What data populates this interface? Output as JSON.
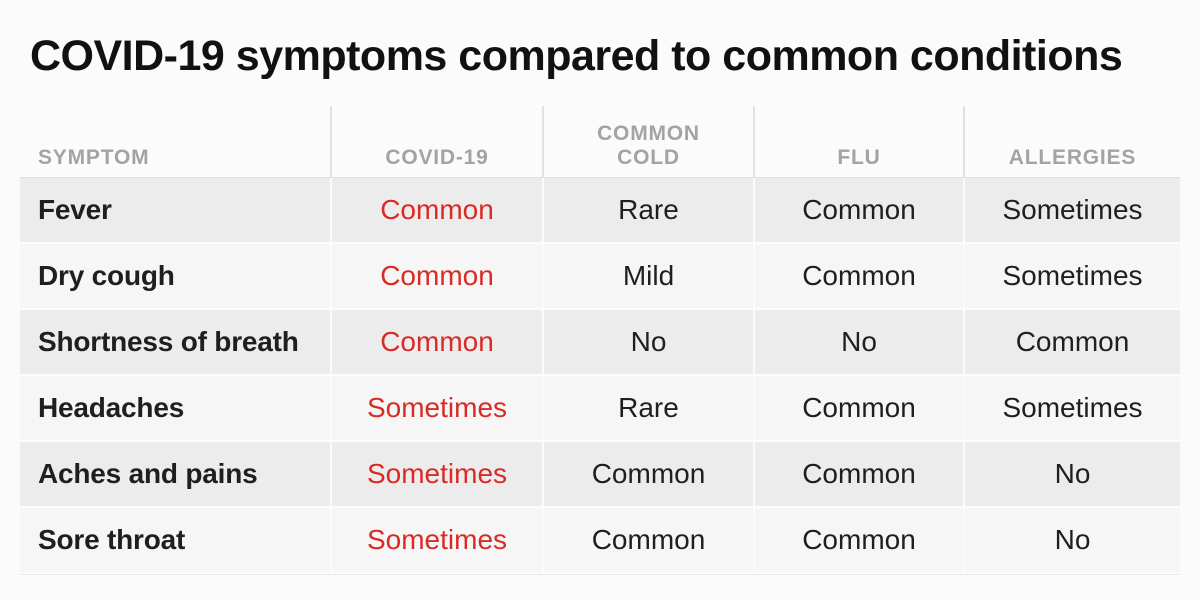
{
  "title": "COVID-19 symptoms compared to common conditions",
  "colors": {
    "accent_red": "#d92b26",
    "header_text": "#a3a3a3",
    "body_text": "#1f1f1f",
    "row_shaded": "#ececec",
    "row_light": "#f6f6f6",
    "page_background": "#fbfbfb"
  },
  "table": {
    "headers": [
      {
        "key": "symptom",
        "label": "SYMPTOM"
      },
      {
        "key": "covid",
        "label": "COVID-19"
      },
      {
        "key": "cold",
        "label": "COMMON COLD"
      },
      {
        "key": "flu",
        "label": "FLU"
      },
      {
        "key": "allergies",
        "label": "ALLERGIES"
      }
    ],
    "rows": [
      {
        "symptom": "Fever",
        "covid": "Common",
        "cold": "Rare",
        "flu": "Common",
        "allergies": "Sometimes"
      },
      {
        "symptom": "Dry cough",
        "covid": "Common",
        "cold": "Mild",
        "flu": "Common",
        "allergies": "Sometimes"
      },
      {
        "symptom": "Shortness of breath",
        "covid": "Common",
        "cold": "No",
        "flu": "No",
        "allergies": "Common"
      },
      {
        "symptom": "Headaches",
        "covid": "Sometimes",
        "cold": "Rare",
        "flu": "Common",
        "allergies": "Sometimes"
      },
      {
        "symptom": "Aches and pains",
        "covid": "Sometimes",
        "cold": "Common",
        "flu": "Common",
        "allergies": "No"
      },
      {
        "symptom": "Sore throat",
        "covid": "Sometimes",
        "cold": "Common",
        "flu": "Common",
        "allergies": "No"
      }
    ]
  },
  "chart_data": {
    "type": "table",
    "title": "COVID-19 symptoms compared to common conditions",
    "columns": [
      "SYMPTOM",
      "COVID-19",
      "COMMON COLD",
      "FLU",
      "ALLERGIES"
    ],
    "rows": [
      [
        "Fever",
        "Common",
        "Rare",
        "Common",
        "Sometimes"
      ],
      [
        "Dry cough",
        "Common",
        "Mild",
        "Common",
        "Sometimes"
      ],
      [
        "Shortness of breath",
        "Common",
        "No",
        "No",
        "Common"
      ],
      [
        "Headaches",
        "Sometimes",
        "Rare",
        "Common",
        "Sometimes"
      ],
      [
        "Aches and pains",
        "Sometimes",
        "Common",
        "Common",
        "No"
      ],
      [
        "Sore throat",
        "Sometimes",
        "Common",
        "Common",
        "No"
      ]
    ],
    "layout_hints": {
      "covid_column_color": "#d92b26",
      "alternating_row_shading": true,
      "header_style": "uppercase gray bold"
    }
  }
}
